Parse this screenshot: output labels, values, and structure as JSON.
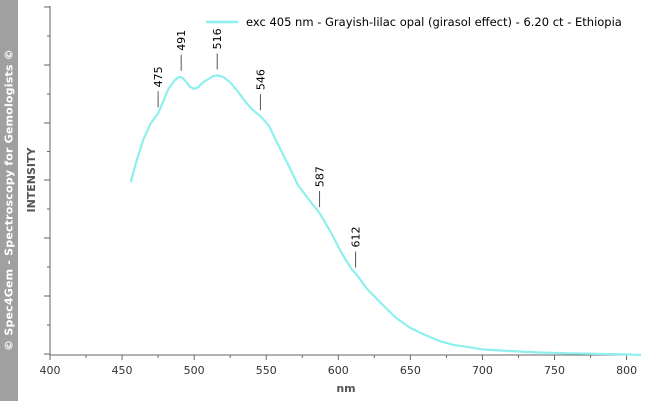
{
  "watermark": "© Spec4Gem - Spectroscopy for Gemologists ©",
  "chart_data": {
    "type": "line",
    "xlabel": "nm",
    "ylabel": "INTENSITY",
    "xlim": [
      400,
      810
    ],
    "ylim": [
      0,
      100
    ],
    "x_ticks": [
      "400",
      "450",
      "500",
      "550",
      "600",
      "650",
      "700",
      "750",
      "800"
    ],
    "grid": false,
    "legend_position": "top-right",
    "colors": {
      "series": "#8ef0ee",
      "axis": "#666666",
      "background": "#ffffff",
      "banner": "#a0a0a0"
    },
    "series": [
      {
        "name": "exc 405 nm - Grayish-lilac opal (girasol effect) - 6.20 ct - Ethiopia",
        "x": [
          456,
          460,
          465,
          470,
          475,
          478,
          482,
          486,
          489,
          491,
          494,
          497,
          500,
          503,
          506,
          510,
          513,
          516,
          520,
          525,
          530,
          535,
          540,
          546,
          552,
          558,
          565,
          572,
          580,
          587,
          595,
          600,
          605,
          610,
          612,
          615,
          620,
          630,
          640,
          650,
          660,
          670,
          680,
          690,
          700,
          720,
          740,
          760,
          780,
          800,
          810
        ],
        "y": [
          61.5,
          69,
          77,
          82.5,
          86,
          89.5,
          94.5,
          97.5,
          98.8,
          99,
          97.5,
          95.5,
          94.7,
          95.3,
          97,
          98.2,
          99.2,
          99.5,
          99,
          97,
          94,
          90.5,
          87.5,
          85,
          81.5,
          75,
          68,
          60.5,
          55,
          50.5,
          43.5,
          38.5,
          34,
          30,
          29,
          27,
          23.5,
          18.3,
          13.2,
          9.6,
          7.2,
          5,
          3.6,
          2.8,
          2,
          1.4,
          0.9,
          0.6,
          0.4,
          0.2,
          0
        ]
      }
    ],
    "annotations": [
      "475",
      "491",
      "516",
      "546",
      "587",
      "612"
    ],
    "annotation_x": [
      475,
      491,
      516,
      546,
      587,
      612
    ]
  }
}
